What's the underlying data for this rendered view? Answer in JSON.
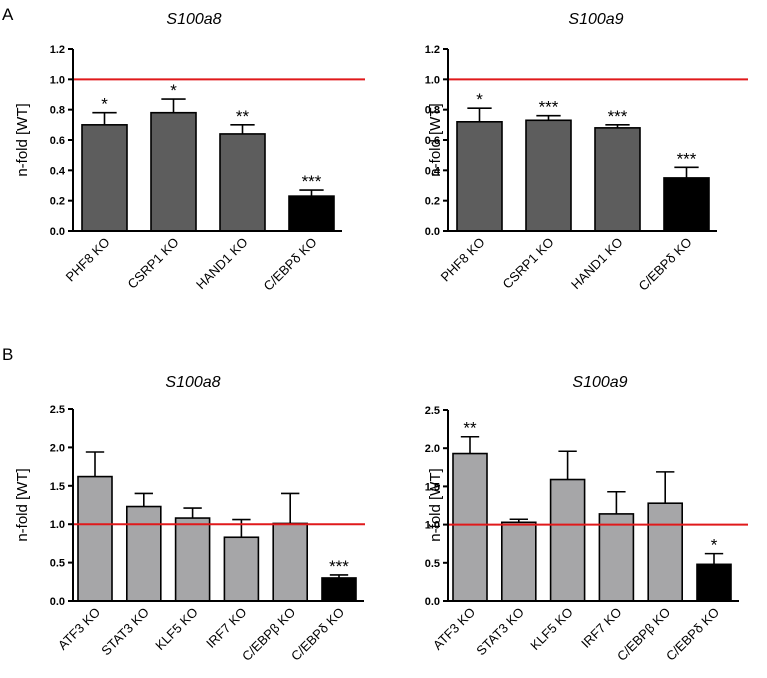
{
  "panels": [
    {
      "label": "A"
    },
    {
      "label": "B"
    }
  ],
  "colors": {
    "bar_gray_a": "#5d5d5d",
    "bar_gray_b": "#a6a6a8",
    "bar_black": "#000000",
    "ref_line": "#e0191b",
    "axis": "#000000"
  },
  "chart_data": [
    {
      "type": "bar",
      "panel": "A",
      "title": "S100a8",
      "ylabel": "n-fold [WT]",
      "xlabel": "",
      "ylim": [
        0,
        1.2
      ],
      "yticks": [
        "0.0",
        "0.2",
        "0.4",
        "0.6",
        "0.8",
        "1.0",
        "1.2"
      ],
      "reference_line": 1.0,
      "categories": [
        "PHF8 KO",
        "CSRP1 KO",
        "HAND1 KO",
        "C/EBPδ KO"
      ],
      "values": [
        0.7,
        0.78,
        0.64,
        0.23
      ],
      "errors": [
        0.08,
        0.09,
        0.06,
        0.04
      ],
      "significance": [
        "*",
        "*",
        "**",
        "***"
      ],
      "highlight": [
        false,
        false,
        false,
        true
      ]
    },
    {
      "type": "bar",
      "panel": "A",
      "title": "S100a9",
      "ylabel": "n-fold [WT]",
      "xlabel": "",
      "ylim": [
        0,
        1.2
      ],
      "yticks": [
        "0.0",
        "0.2",
        "0.4",
        "0.6",
        "0.8",
        "1.0",
        "1.2"
      ],
      "reference_line": 1.0,
      "categories": [
        "PHF8 KO",
        "CSRP1 KO",
        "HAND1 KO",
        "C/EBPδ KO"
      ],
      "values": [
        0.72,
        0.73,
        0.68,
        0.35
      ],
      "errors": [
        0.09,
        0.03,
        0.02,
        0.07
      ],
      "significance": [
        "*",
        "***",
        "***",
        "***"
      ],
      "highlight": [
        false,
        false,
        false,
        true
      ]
    },
    {
      "type": "bar",
      "panel": "B",
      "title": "S100a8",
      "ylabel": "n-fold [WT]",
      "xlabel": "",
      "ylim": [
        0,
        2.5
      ],
      "yticks": [
        "0.0",
        "0.5",
        "1.0",
        "1.5",
        "2.0",
        "2.5"
      ],
      "reference_line": 1.0,
      "categories": [
        "ATF3 KO",
        "STAT3 KO",
        "KLF5 KO",
        "IRF7 KO",
        "C/EBPβ KO",
        "C/EBPδ KO"
      ],
      "values": [
        1.62,
        1.23,
        1.08,
        0.83,
        1.01,
        0.3
      ],
      "errors": [
        0.32,
        0.17,
        0.13,
        0.23,
        0.39,
        0.04
      ],
      "significance": [
        "",
        "",
        "",
        "",
        "",
        "***"
      ],
      "highlight": [
        false,
        false,
        false,
        false,
        false,
        true
      ]
    },
    {
      "type": "bar",
      "panel": "B",
      "title": "S100a9",
      "ylabel": "n-fold [WT]",
      "xlabel": "",
      "ylim": [
        0,
        2.5
      ],
      "yticks": [
        "0.0",
        "0.5",
        "1.0",
        "1.5",
        "2.0",
        "2.5"
      ],
      "reference_line": 1.0,
      "categories": [
        "ATF3 KO",
        "STAT3 KO",
        "KLF5 KO",
        "IRF7 KO",
        "C/EBPβ KO",
        "C/EBPδ KO"
      ],
      "values": [
        1.93,
        1.03,
        1.59,
        1.14,
        1.28,
        0.48
      ],
      "errors": [
        0.22,
        0.04,
        0.37,
        0.29,
        0.41,
        0.14
      ],
      "significance": [
        "**",
        "",
        "",
        "",
        "",
        "*"
      ],
      "highlight": [
        false,
        false,
        false,
        false,
        false,
        true
      ]
    }
  ]
}
